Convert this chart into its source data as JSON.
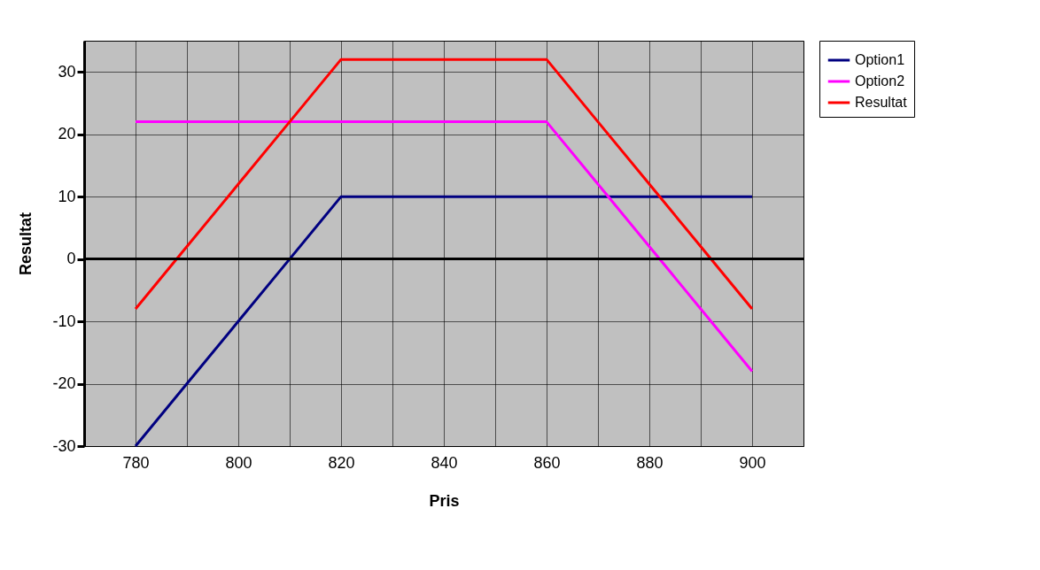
{
  "chart_data": {
    "type": "line",
    "xlabel": "Pris",
    "ylabel": "Resultat",
    "x": [
      780,
      790,
      800,
      810,
      820,
      830,
      840,
      850,
      860,
      870,
      880,
      890,
      900
    ],
    "series": [
      {
        "name": "Option1",
        "color": "#000080",
        "values": [
          -30,
          -20,
          -10,
          0,
          10,
          10,
          10,
          10,
          10,
          10,
          10,
          10,
          10
        ]
      },
      {
        "name": "Option2",
        "color": "#ff00ff",
        "values": [
          22,
          22,
          22,
          22,
          22,
          22,
          22,
          22,
          22,
          12,
          2,
          -8,
          -18
        ]
      },
      {
        "name": "Resultat",
        "color": "#ff0000",
        "values": [
          -8,
          2,
          12,
          22,
          32,
          32,
          32,
          32,
          32,
          22,
          12,
          2,
          -8
        ]
      }
    ],
    "xlim": [
      770,
      910
    ],
    "xticks": [
      {
        "value": 770,
        "label": null
      },
      780,
      {
        "value": 790,
        "label": null
      },
      800,
      {
        "value": 810,
        "label": null
      },
      820,
      {
        "value": 830,
        "label": null
      },
      840,
      {
        "value": 850,
        "label": null
      },
      860,
      {
        "value": 870,
        "label": null
      },
      880,
      {
        "value": 890,
        "label": null
      },
      900,
      {
        "value": 910,
        "label": null
      }
    ],
    "ylim": [
      -30,
      35
    ],
    "yticks": [
      -30,
      -20,
      -10,
      0,
      10,
      20,
      30
    ],
    "ref_lines": [
      {
        "axis": "y",
        "value": 0,
        "color": "#000000"
      }
    ],
    "grid": true,
    "legend": "right",
    "marker": "none",
    "line_style": "solid"
  }
}
